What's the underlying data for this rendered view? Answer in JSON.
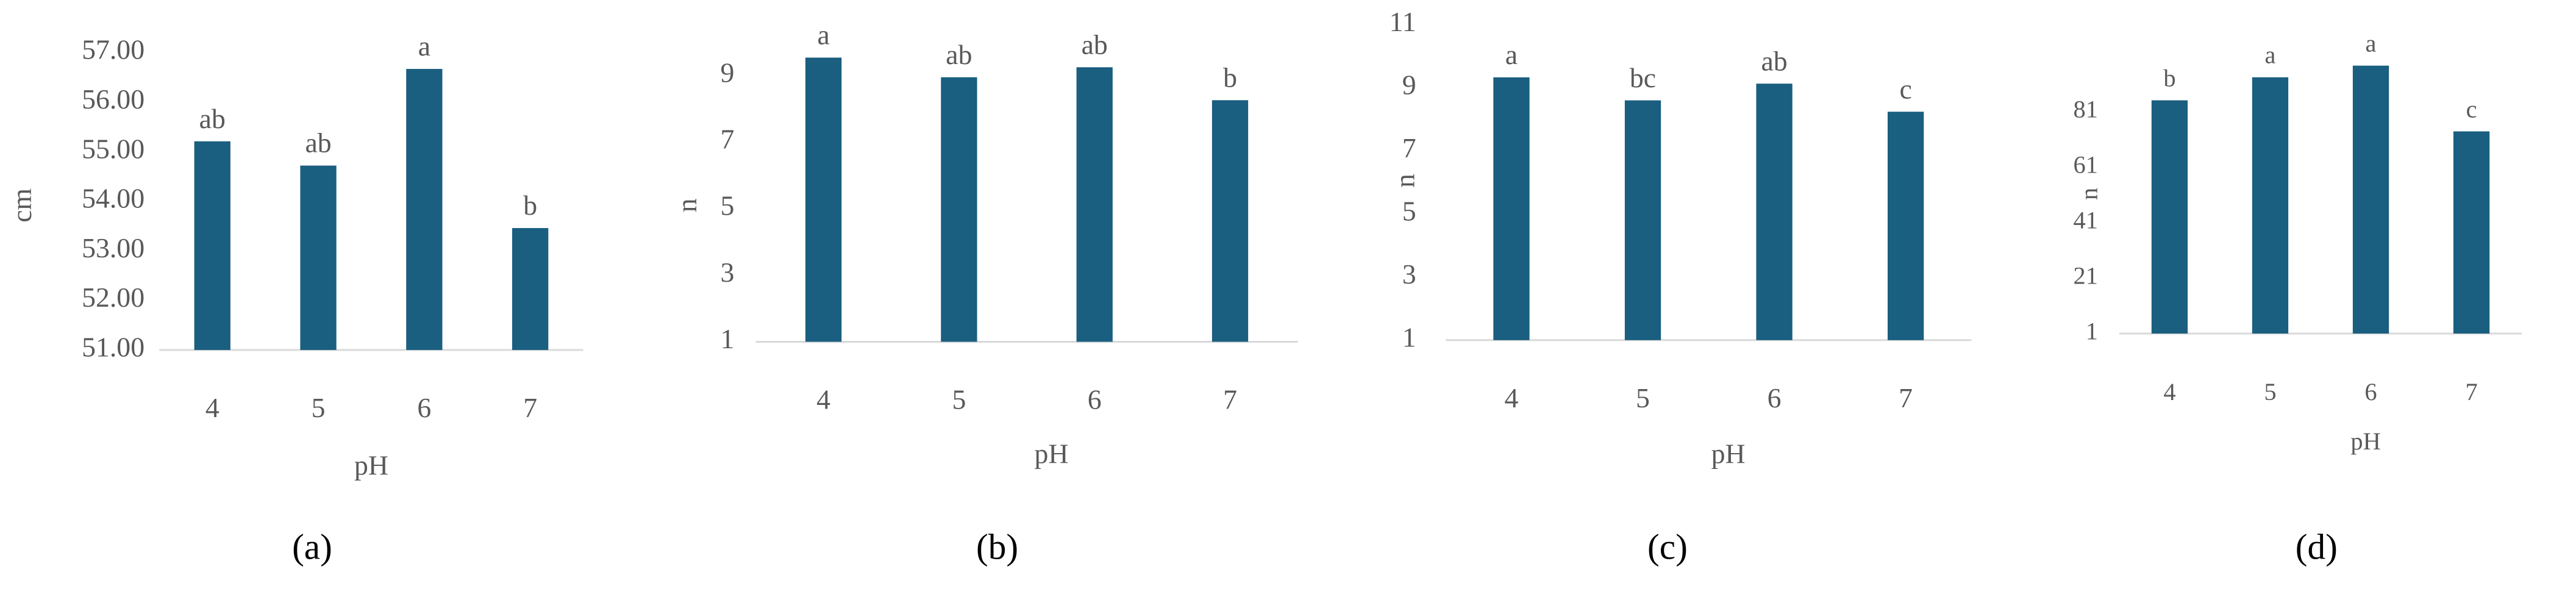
{
  "chart_data": [
    {
      "type": "bar",
      "panel_label": "(a)",
      "y_label": "cm",
      "x_label": "pH",
      "categories": [
        "4",
        "5",
        "6",
        "7"
      ],
      "values": [
        55.21,
        54.72,
        56.67,
        53.46
      ],
      "annotations": [
        "ab",
        "ab",
        "a",
        "b"
      ],
      "color": "#1a5e80",
      "ylim": [
        51,
        57
      ],
      "yticks": [
        {
          "value": 51,
          "label": "51.00"
        },
        {
          "value": 52,
          "label": "52.00"
        },
        {
          "value": 53,
          "label": "53.00"
        },
        {
          "value": 54,
          "label": "54.00"
        },
        {
          "value": 55,
          "label": "55.00"
        },
        {
          "value": 56,
          "label": "56.00"
        },
        {
          "value": 57,
          "label": "57.00"
        }
      ],
      "grid": false
    },
    {
      "type": "bar",
      "panel_label": "(b)",
      "y_label": "n",
      "x_label": "pH",
      "categories": [
        "4",
        "5",
        "6",
        "7"
      ],
      "values": [
        9.54,
        8.95,
        9.25,
        8.26
      ],
      "annotations": [
        "a",
        "ab",
        "ab",
        "b"
      ],
      "color": "#1a5e80",
      "ylim": [
        1,
        10
      ],
      "yticks": [
        1,
        3,
        5,
        7,
        9
      ],
      "grid": false
    },
    {
      "type": "bar",
      "panel_label": "(c)",
      "y_label": "n",
      "x_label": "pH",
      "categories": [
        "4",
        "5",
        "6",
        "7"
      ],
      "values": [
        9.33,
        8.6,
        9.13,
        8.24
      ],
      "annotations": [
        "a",
        "bc",
        "ab",
        "c"
      ],
      "color": "#1a5e80",
      "ylim": [
        1,
        11
      ],
      "yticks": [
        1,
        3,
        5,
        7,
        9,
        11
      ],
      "grid": false
    },
    {
      "type": "bar",
      "panel_label": "(d)",
      "y_label": "n",
      "x_label": "pH",
      "categories": [
        "4",
        "5",
        "6",
        "7"
      ],
      "values": [
        85.1,
        93.4,
        97.6,
        73.9
      ],
      "annotations": [
        "b",
        "a",
        "a",
        "c"
      ],
      "color": "#1a5e80",
      "ylim": [
        1,
        100
      ],
      "yticks": [
        1,
        21,
        41,
        61,
        81
      ],
      "grid": false
    }
  ]
}
